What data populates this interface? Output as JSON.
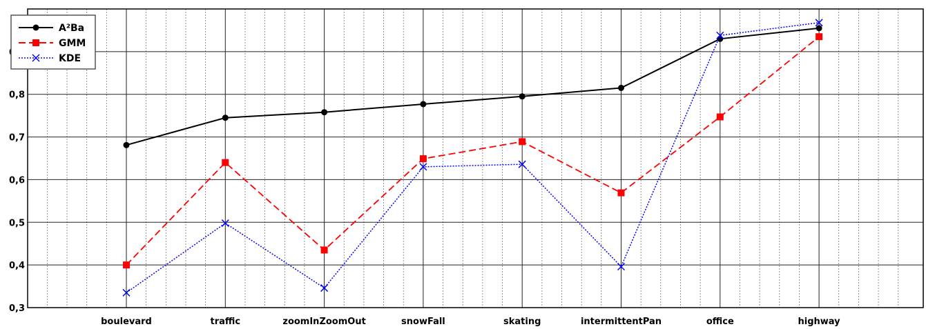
{
  "chart_data": {
    "type": "line",
    "title": "",
    "xlabel": "",
    "ylabel": "",
    "categories": [
      "boulevard",
      "traffic",
      "zoomInZoomOut",
      "snowFall",
      "skating",
      "intermittentPan",
      "office",
      "highway"
    ],
    "ylim": [
      0.3,
      1.0
    ],
    "yticks": [
      "0,3",
      "0,4",
      "0,5",
      "0,6",
      "0,7",
      "0,8",
      "0,9"
    ],
    "grid": true,
    "legend_position": "top-left",
    "series": [
      {
        "name": "A²Ba",
        "color": "#000000",
        "marker": "circle",
        "line_style": "solid",
        "values": [
          0.681,
          0.745,
          0.758,
          0.777,
          0.795,
          0.815,
          0.93,
          0.955
        ]
      },
      {
        "name": "GMM",
        "color": "#ff0000",
        "marker": "square",
        "line_style": "dashed",
        "values": [
          0.4,
          0.64,
          0.435,
          0.649,
          0.689,
          0.569,
          0.747,
          0.935
        ]
      },
      {
        "name": "KDE",
        "color": "#0000ff",
        "marker": "x",
        "line_style": "dotted",
        "values": [
          0.335,
          0.498,
          0.346,
          0.63,
          0.636,
          0.396,
          0.938,
          0.968
        ]
      }
    ]
  }
}
